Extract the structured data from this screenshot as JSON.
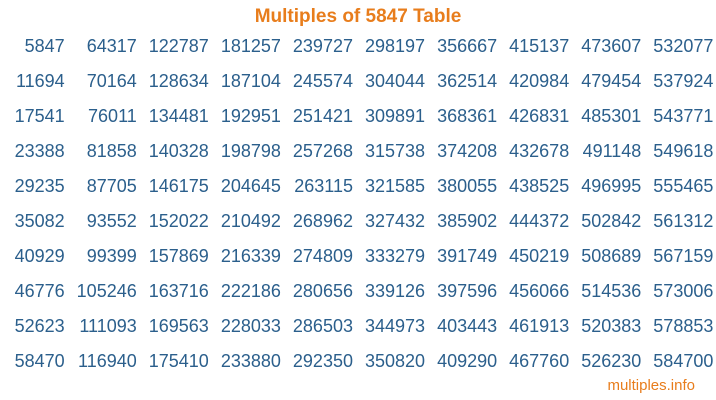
{
  "page": {
    "title": "Multiples of 5847 Table",
    "footer_link": "multiples.info"
  },
  "colors": {
    "accent_orange": "#E87D1C",
    "number_blue": "#2B5F8C",
    "background": "#FFFFFF"
  },
  "chart_data": {
    "type": "table",
    "title": "Multiples of 5847 Table",
    "description": "Multiples of 5847 from 1x to 100x, arranged column-major in 10 columns of 10",
    "base_number": 5847,
    "rows": [
      [
        5847,
        64317,
        122787,
        181257,
        239727,
        298197,
        356667,
        415137,
        473607,
        532077
      ],
      [
        11694,
        70164,
        128634,
        187104,
        245574,
        304044,
        362514,
        420984,
        479454,
        537924
      ],
      [
        17541,
        76011,
        134481,
        192951,
        251421,
        309891,
        368361,
        426831,
        485301,
        543771
      ],
      [
        23388,
        81858,
        140328,
        198798,
        257268,
        315738,
        374208,
        432678,
        491148,
        549618
      ],
      [
        29235,
        87705,
        146175,
        204645,
        263115,
        321585,
        380055,
        438525,
        496995,
        555465
      ],
      [
        35082,
        93552,
        152022,
        210492,
        268962,
        327432,
        385902,
        444372,
        502842,
        561312
      ],
      [
        40929,
        99399,
        157869,
        216339,
        274809,
        333279,
        391749,
        450219,
        508689,
        567159
      ],
      [
        46776,
        105246,
        163716,
        222186,
        280656,
        339126,
        397596,
        456066,
        514536,
        573006
      ],
      [
        52623,
        111093,
        169563,
        228033,
        286503,
        344973,
        403443,
        461913,
        520383,
        578853
      ],
      [
        58470,
        116940,
        175410,
        233880,
        292350,
        350820,
        409290,
        467760,
        526230,
        584700
      ]
    ]
  }
}
